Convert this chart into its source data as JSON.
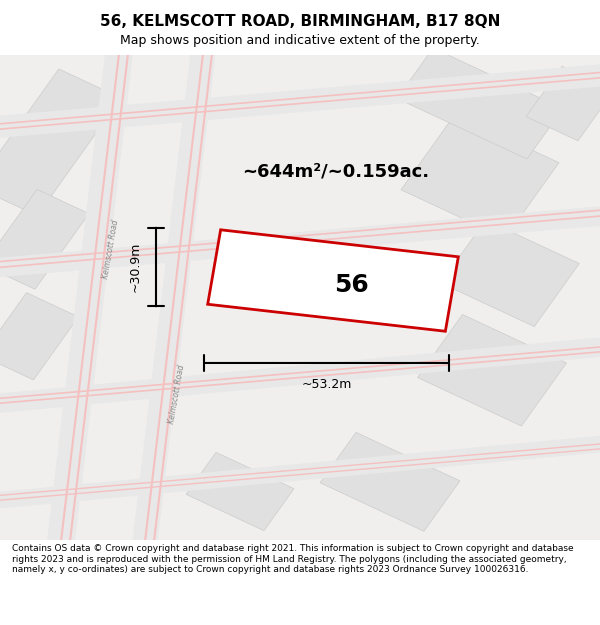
{
  "title_line1": "56, KELMSCOTT ROAD, BIRMINGHAM, B17 8QN",
  "title_line2": "Map shows position and indicative extent of the property.",
  "area_label": "~644m²/~0.159ac.",
  "property_number": "56",
  "width_label": "~53.2m",
  "height_label": "~30.9m",
  "footer_text": "Contains OS data © Crown copyright and database right 2021. This information is subject to Crown copyright and database rights 2023 and is reproduced with the permission of HM Land Registry. The polygons (including the associated geometry, namely x, y co-ordinates) are subject to Crown copyright and database rights 2023 Ordnance Survey 100026316.",
  "bg_color": "#f5f5f5",
  "map_bg": "#f0efee",
  "road_color_light": "#f5c0c0",
  "road_color_dark": "#e8e8e8",
  "property_fill": "#ffffff",
  "property_edge": "#cc0000",
  "footer_bg": "#ffffff",
  "title_bg": "#ffffff"
}
